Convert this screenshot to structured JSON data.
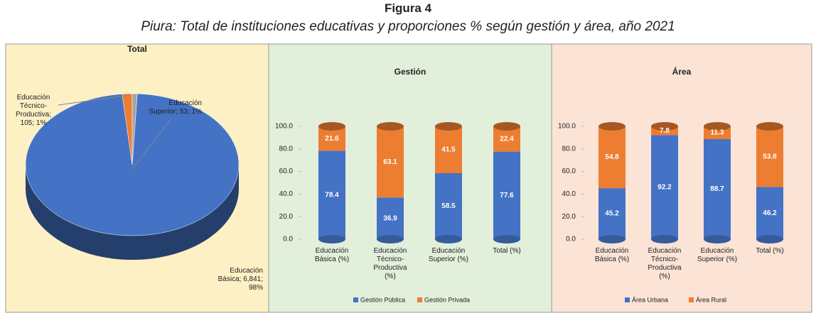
{
  "header": {
    "figure": "Figura 4",
    "title": "Piura: Total de instituciones educativas y proporciones % según gestión y área, año 2021"
  },
  "chart_data": [
    {
      "type": "pie",
      "title": "Total",
      "values": [
        6841,
        105,
        53
      ],
      "value_labels": [
        "Educación Básica; 6,841; 98%",
        "Educación Técnico-Productiva; 105; 1%",
        "Educación Superior; 53; 1%"
      ],
      "colors": [
        "#4472c4",
        "#ed7d31",
        "#a5a5a5"
      ]
    },
    {
      "type": "stacked_bar",
      "title": "Gestión",
      "categories": [
        "Educación Básica (%)",
        "Educación Técnico-Productiva (%)",
        "Educación Superior (%)",
        "Total (%)"
      ],
      "series": [
        {
          "name": "Gestión Pública",
          "color": "#4472c4",
          "values": [
            78.4,
            36.9,
            58.5,
            77.6
          ]
        },
        {
          "name": "Gestión Privada",
          "color": "#ed7d31",
          "values": [
            21.6,
            63.1,
            41.5,
            22.4
          ]
        }
      ],
      "ylim": [
        0,
        100
      ],
      "yticks": [
        {
          "value": 0,
          "label": "0.0"
        },
        {
          "value": 20,
          "label": "20.0"
        },
        {
          "value": 40,
          "label": "40.0"
        },
        {
          "value": 60,
          "label": "60.0"
        },
        {
          "value": 80,
          "label": "80.0"
        },
        {
          "value": 100,
          "label": "100.0"
        }
      ]
    },
    {
      "type": "stacked_bar",
      "title": "Área",
      "categories": [
        "Educación Básica (%)",
        "Educación Técnico-Productiva (%)",
        "Educación Superior (%)",
        "Total (%)"
      ],
      "series": [
        {
          "name": "Área Urbana",
          "color": "#4472c4",
          "values": [
            45.2,
            92.2,
            88.7,
            46.2
          ]
        },
        {
          "name": "Área Rural",
          "color": "#ed7d31",
          "values": [
            54.8,
            7.8,
            11.3,
            53.8
          ]
        }
      ],
      "ylim": [
        0,
        100
      ],
      "yticks": [
        {
          "value": 0,
          "label": "0.0"
        },
        {
          "value": 20,
          "label": "20.0"
        },
        {
          "value": 40,
          "label": "40.0"
        },
        {
          "value": 60,
          "label": "60.0"
        },
        {
          "value": 80,
          "label": "80.0"
        },
        {
          "value": 100,
          "label": "100.0"
        }
      ]
    }
  ]
}
